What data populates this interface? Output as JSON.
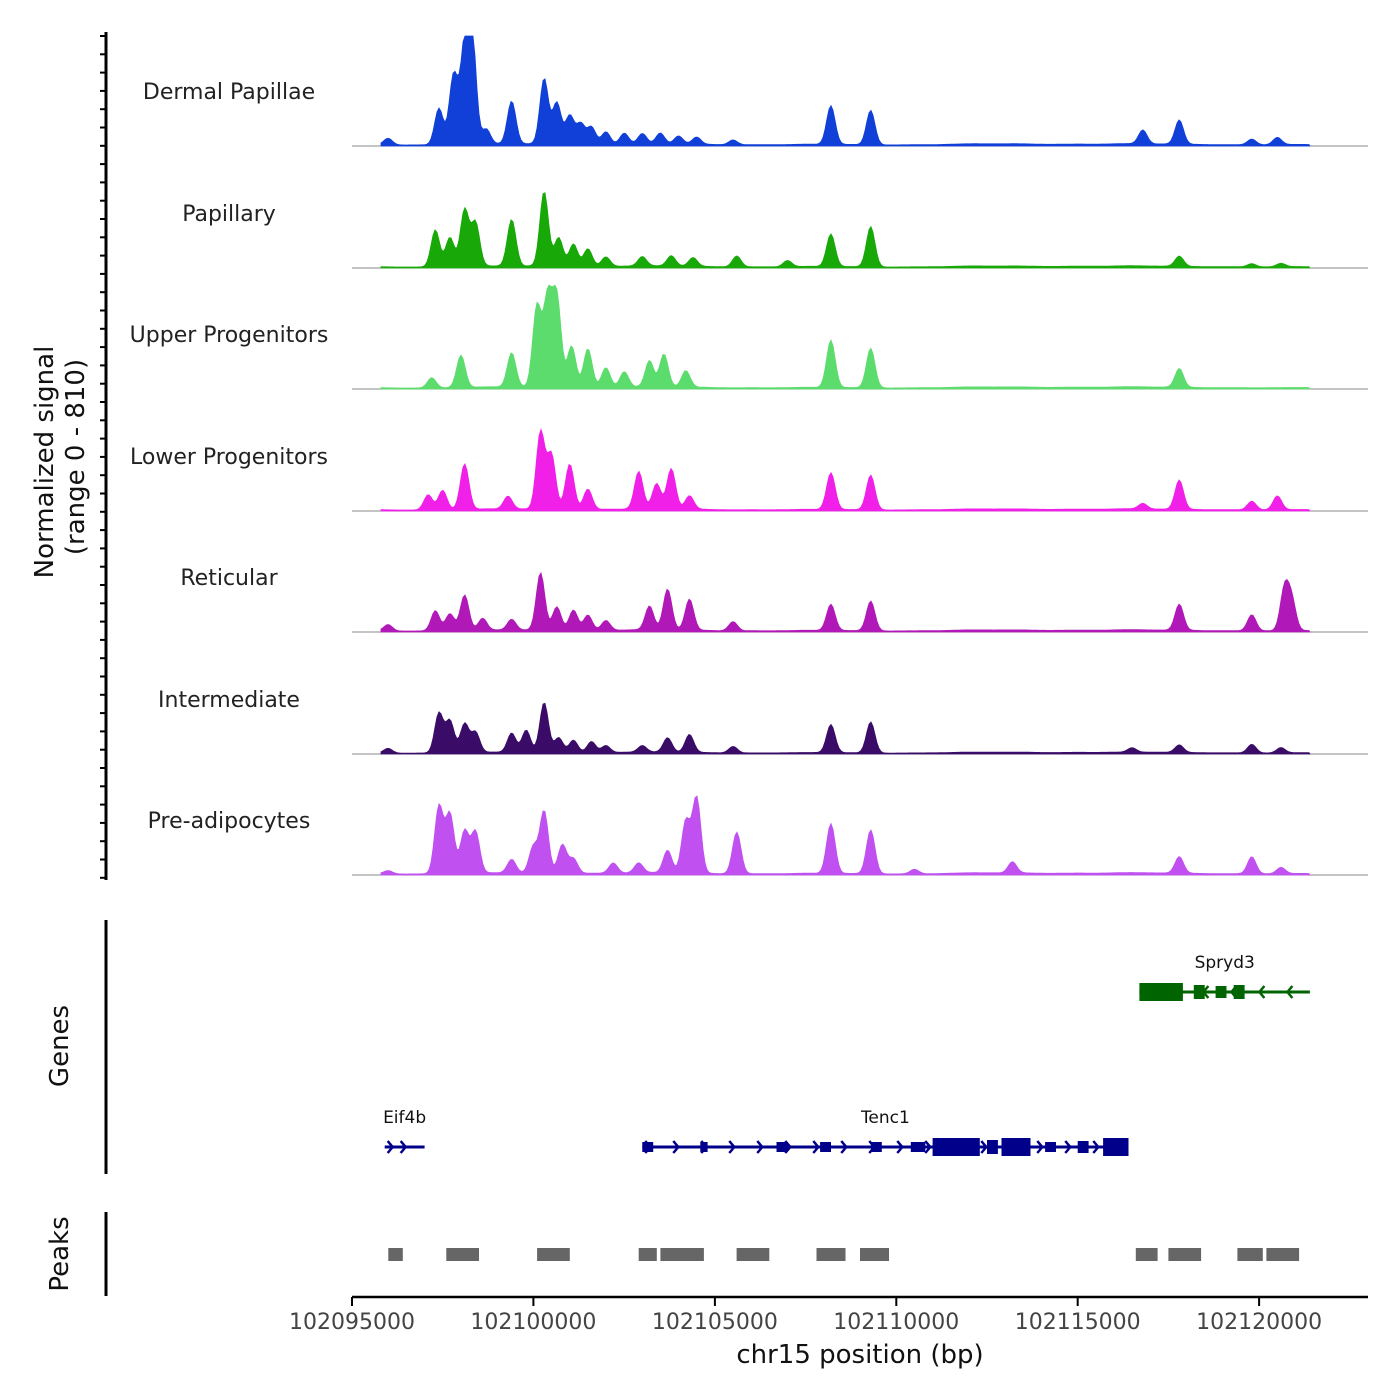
{
  "chart_data": {
    "type": "area",
    "title": "",
    "ylabel_main": "Normalized signal",
    "ylabel_sub": "(range 0 - 810)",
    "xlabel": "chr15 position (bp)",
    "xlim": [
      102095000,
      102123000
    ],
    "xticks": [
      102095000,
      102100000,
      102105000,
      102110000,
      102115000,
      102120000
    ],
    "xtick_labels": [
      "102095000",
      "102100000",
      "102105000",
      "102110000",
      "102115000",
      "102120000"
    ],
    "y_range": [
      0,
      810
    ],
    "tracks": [
      {
        "name": "Dermal Papillae",
        "color": "#1040d8",
        "scale": 1.0,
        "pulses": [
          [
            96000,
            0.06
          ],
          [
            97400,
            0.35
          ],
          [
            97800,
            0.7
          ],
          [
            98100,
            0.85
          ],
          [
            98300,
            0.95
          ],
          [
            98700,
            0.12
          ],
          [
            99400,
            0.38
          ],
          [
            100300,
            0.58
          ],
          [
            100650,
            0.42
          ],
          [
            101000,
            0.3
          ],
          [
            101300,
            0.2
          ],
          [
            101600,
            0.16
          ],
          [
            102000,
            0.12
          ],
          [
            102500,
            0.1
          ],
          [
            103000,
            0.08
          ],
          [
            103500,
            0.09
          ],
          [
            104000,
            0.07
          ],
          [
            104500,
            0.06
          ],
          [
            105500,
            0.05
          ],
          [
            108200,
            0.35
          ],
          [
            109300,
            0.33
          ],
          [
            116800,
            0.12
          ],
          [
            117800,
            0.22
          ],
          [
            119800,
            0.05
          ],
          [
            120500,
            0.06
          ]
        ]
      },
      {
        "name": "Papillary",
        "color": "#18a808",
        "scale": 0.92,
        "pulses": [
          [
            97300,
            0.38
          ],
          [
            97700,
            0.32
          ],
          [
            98100,
            0.58
          ],
          [
            98400,
            0.4
          ],
          [
            99400,
            0.45
          ],
          [
            100300,
            0.72
          ],
          [
            100700,
            0.32
          ],
          [
            101100,
            0.25
          ],
          [
            101500,
            0.18
          ],
          [
            102000,
            0.1
          ],
          [
            103000,
            0.08
          ],
          [
            103800,
            0.1
          ],
          [
            104400,
            0.08
          ],
          [
            105600,
            0.12
          ],
          [
            107000,
            0.06
          ],
          [
            108200,
            0.32
          ],
          [
            109300,
            0.42
          ],
          [
            117800,
            0.1
          ],
          [
            119800,
            0.03
          ],
          [
            120600,
            0.03
          ]
        ]
      },
      {
        "name": "Upper Progenitors",
        "color": "#5cdc6c",
        "scale": 0.95,
        "pulses": [
          [
            97200,
            0.1
          ],
          [
            98000,
            0.33
          ],
          [
            99400,
            0.32
          ],
          [
            100100,
            0.72
          ],
          [
            100400,
            0.85
          ],
          [
            100650,
            0.95
          ],
          [
            101050,
            0.45
          ],
          [
            101500,
            0.38
          ],
          [
            102000,
            0.2
          ],
          [
            102500,
            0.15
          ],
          [
            103200,
            0.22
          ],
          [
            103600,
            0.3
          ],
          [
            104200,
            0.15
          ],
          [
            108200,
            0.45
          ],
          [
            109300,
            0.4
          ],
          [
            117800,
            0.18
          ]
        ]
      },
      {
        "name": "Lower Progenitors",
        "color": "#f020e8",
        "scale": 0.95,
        "pulses": [
          [
            97100,
            0.15
          ],
          [
            97500,
            0.2
          ],
          [
            98100,
            0.45
          ],
          [
            99300,
            0.12
          ],
          [
            100200,
            0.7
          ],
          [
            100500,
            0.55
          ],
          [
            101000,
            0.5
          ],
          [
            101500,
            0.2
          ],
          [
            102900,
            0.32
          ],
          [
            103400,
            0.22
          ],
          [
            103800,
            0.38
          ],
          [
            104300,
            0.12
          ],
          [
            108200,
            0.35
          ],
          [
            109300,
            0.35
          ],
          [
            116800,
            0.05
          ],
          [
            117800,
            0.28
          ],
          [
            119800,
            0.08
          ],
          [
            120500,
            0.12
          ]
        ]
      },
      {
        "name": "Reticular",
        "color": "#b018b8",
        "scale": 0.95,
        "pulses": [
          [
            96000,
            0.06
          ],
          [
            97300,
            0.2
          ],
          [
            97700,
            0.18
          ],
          [
            98100,
            0.35
          ],
          [
            98600,
            0.1
          ],
          [
            99400,
            0.1
          ],
          [
            100200,
            0.52
          ],
          [
            100650,
            0.25
          ],
          [
            101100,
            0.22
          ],
          [
            101500,
            0.15
          ],
          [
            102000,
            0.1
          ],
          [
            103200,
            0.2
          ],
          [
            103700,
            0.38
          ],
          [
            104300,
            0.28
          ],
          [
            105500,
            0.1
          ],
          [
            108200,
            0.25
          ],
          [
            109300,
            0.3
          ],
          [
            117800,
            0.25
          ],
          [
            119800,
            0.15
          ],
          [
            120700,
            0.35
          ],
          [
            120900,
            0.25
          ]
        ]
      },
      {
        "name": "Intermediate",
        "color": "#3a0c68",
        "scale": 0.85,
        "pulses": [
          [
            96000,
            0.05
          ],
          [
            97400,
            0.45
          ],
          [
            97700,
            0.38
          ],
          [
            98100,
            0.32
          ],
          [
            98400,
            0.2
          ],
          [
            99400,
            0.2
          ],
          [
            99800,
            0.22
          ],
          [
            100300,
            0.52
          ],
          [
            100700,
            0.18
          ],
          [
            101100,
            0.15
          ],
          [
            101600,
            0.12
          ],
          [
            102000,
            0.08
          ],
          [
            103000,
            0.06
          ],
          [
            103700,
            0.15
          ],
          [
            104300,
            0.18
          ],
          [
            105500,
            0.08
          ],
          [
            108200,
            0.3
          ],
          [
            109300,
            0.35
          ],
          [
            116500,
            0.04
          ],
          [
            117800,
            0.08
          ],
          [
            119800,
            0.09
          ],
          [
            120600,
            0.05
          ]
        ]
      },
      {
        "name": "Pre-adipocytes",
        "color": "#c050f0",
        "scale": 1.0,
        "pulses": [
          [
            96000,
            0.03
          ],
          [
            97400,
            0.65
          ],
          [
            97700,
            0.6
          ],
          [
            98100,
            0.4
          ],
          [
            98400,
            0.35
          ],
          [
            99400,
            0.12
          ],
          [
            100000,
            0.22
          ],
          [
            100300,
            0.55
          ],
          [
            100800,
            0.3
          ],
          [
            101100,
            0.15
          ],
          [
            102200,
            0.1
          ],
          [
            102900,
            0.08
          ],
          [
            103700,
            0.2
          ],
          [
            104200,
            0.45
          ],
          [
            104500,
            0.65
          ],
          [
            105600,
            0.42
          ],
          [
            108200,
            0.45
          ],
          [
            109300,
            0.42
          ],
          [
            110500,
            0.04
          ],
          [
            113200,
            0.1
          ],
          [
            117800,
            0.15
          ],
          [
            119800,
            0.15
          ],
          [
            120600,
            0.05
          ]
        ]
      }
    ],
    "genes": [
      {
        "name": "Spryd3",
        "color": "#006400",
        "strand": "-",
        "start": 102116700,
        "end": 102121400,
        "row": 1
      },
      {
        "name": "Eif4b",
        "color": "#00008b",
        "strand": "+",
        "start": 102095900,
        "end": 102097000,
        "row": 2
      },
      {
        "name": "Tenc1",
        "color": "#00008b",
        "strand": "+",
        "start": 102103000,
        "end": 102116400,
        "row": 2
      }
    ],
    "peaks": [
      [
        102096000,
        102096400
      ],
      [
        102097600,
        102098500
      ],
      [
        102100100,
        102101000
      ],
      [
        102102900,
        102103400
      ],
      [
        102103500,
        102104700
      ],
      [
        102105600,
        102106500
      ],
      [
        102107800,
        102108600
      ],
      [
        102109000,
        102109800
      ],
      [
        102116600,
        102117200
      ],
      [
        102117500,
        102118400
      ],
      [
        102119400,
        102120100
      ],
      [
        102120200,
        102121100
      ]
    ],
    "panel_labels": {
      "genes": "Genes",
      "peaks": "Peaks"
    }
  }
}
